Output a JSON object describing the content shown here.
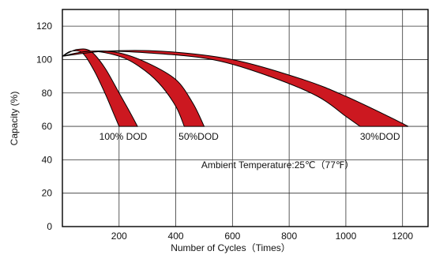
{
  "chart_data": {
    "type": "area",
    "title": "",
    "xlabel": "Number of Cycles（Times）",
    "ylabel": "Capacity (%)",
    "xlim": [
      0,
      1290
    ],
    "ylim": [
      0,
      130
    ],
    "xticks": [
      200,
      400,
      600,
      800,
      1000,
      1200
    ],
    "yticks": [
      0,
      20,
      40,
      60,
      80,
      100,
      120
    ],
    "x_tick_labels": [
      "200",
      "400",
      "600",
      "800",
      "1000",
      "1200"
    ],
    "y_tick_labels": [
      "0",
      "20",
      "40",
      "60",
      "80",
      "100",
      "120"
    ],
    "grid": true,
    "fill_color": "#cc1820",
    "series": [
      {
        "name": "100% DOD",
        "upper": [
          [
            0,
            102
          ],
          [
            50,
            106
          ],
          [
            100,
            105
          ],
          [
            150,
            95
          ],
          [
            200,
            80
          ],
          [
            240,
            68
          ],
          [
            265,
            60
          ]
        ],
        "lower": [
          [
            0,
            102
          ],
          [
            30,
            105
          ],
          [
            70,
            104
          ],
          [
            110,
            94
          ],
          [
            150,
            80
          ],
          [
            180,
            68
          ],
          [
            200,
            60
          ]
        ]
      },
      {
        "name": "50%DOD",
        "upper": [
          [
            0,
            102
          ],
          [
            100,
            105
          ],
          [
            200,
            104
          ],
          [
            300,
            98
          ],
          [
            400,
            88
          ],
          [
            460,
            74
          ],
          [
            500,
            60
          ]
        ],
        "lower": [
          [
            0,
            102
          ],
          [
            100,
            105
          ],
          [
            200,
            102
          ],
          [
            270,
            96
          ],
          [
            340,
            86
          ],
          [
            400,
            72
          ],
          [
            430,
            60
          ]
        ]
      },
      {
        "name": "30%DOD",
        "upper": [
          [
            0,
            102
          ],
          [
            150,
            105
          ],
          [
            350,
            105
          ],
          [
            600,
            100
          ],
          [
            850,
            88
          ],
          [
            1000,
            78
          ],
          [
            1150,
            66
          ],
          [
            1220,
            60
          ]
        ],
        "lower": [
          [
            0,
            102
          ],
          [
            100,
            105
          ],
          [
            300,
            104
          ],
          [
            530,
            100
          ],
          [
            730,
            90
          ],
          [
            900,
            78
          ],
          [
            1000,
            66
          ],
          [
            1050,
            60
          ]
        ]
      }
    ],
    "annotations": [
      {
        "text": "100% DOD",
        "x": 130,
        "y": 52,
        "anchor": "start"
      },
      {
        "text": "50%DOD",
        "x": 410,
        "y": 52,
        "anchor": "start"
      },
      {
        "text": "30%DOD",
        "x": 1050,
        "y": 52,
        "anchor": "start"
      },
      {
        "text": "Ambient Temperature:25℃（77℉）",
        "x": 490,
        "y": 35,
        "anchor": "start"
      }
    ]
  }
}
